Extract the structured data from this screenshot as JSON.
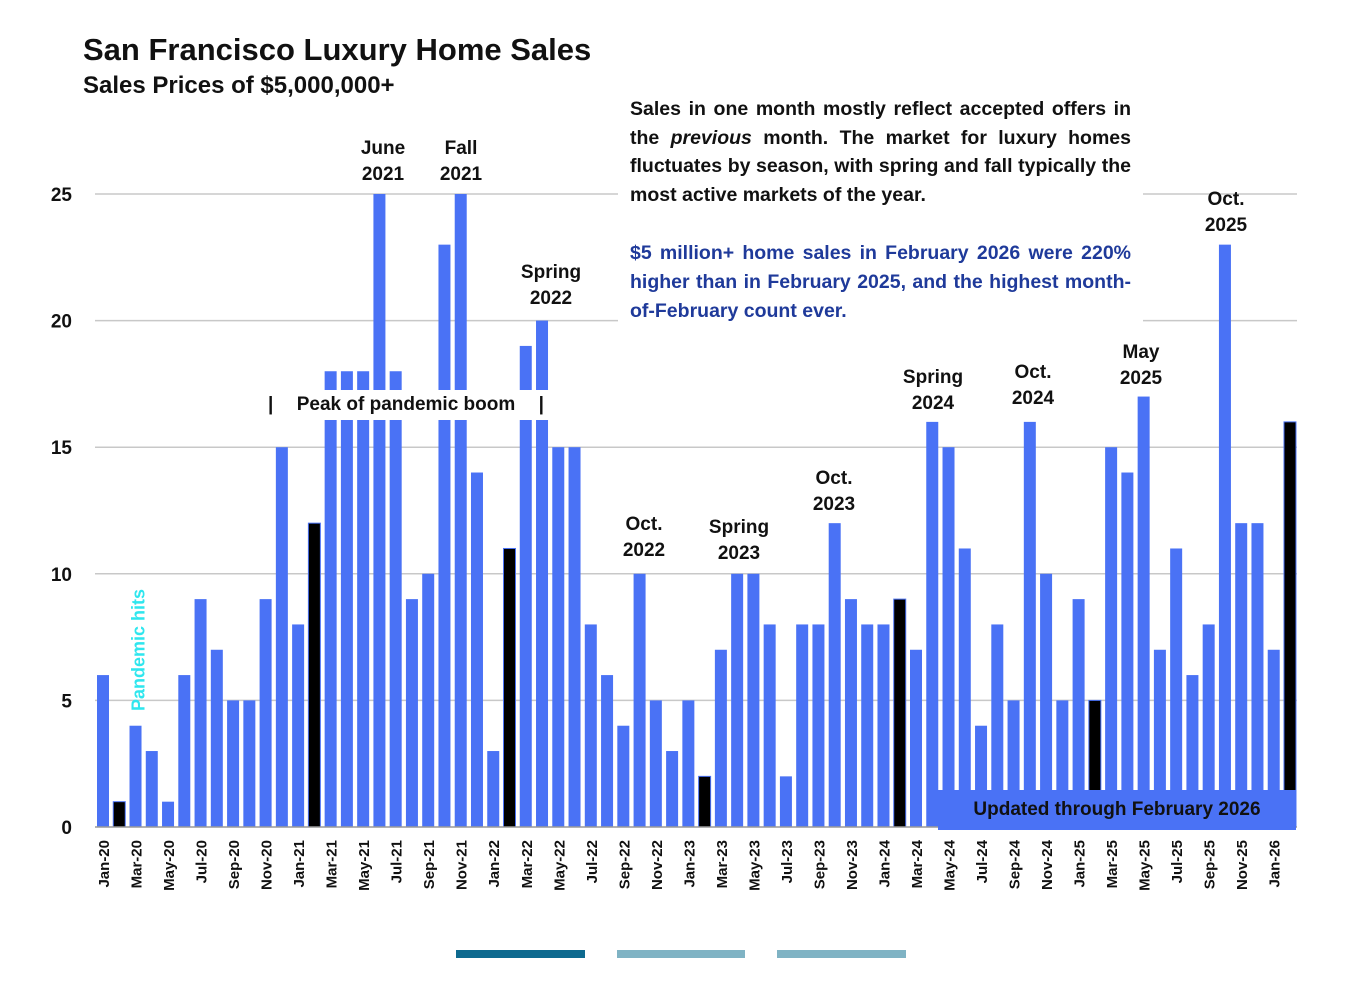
{
  "chart_data": {
    "type": "bar",
    "title": "San Francisco Luxury Home Sales",
    "subtitle": "Sales Prices of $5,000,000+",
    "xlabel": "",
    "ylabel": "",
    "ylim": [
      0,
      25
    ],
    "yticks": [
      "0",
      "5",
      "10",
      "15",
      "20",
      "25"
    ],
    "grid": true,
    "categories": [
      "Jan-20",
      "Feb-20",
      "Mar-20",
      "Apr-20",
      "May-20",
      "Jun-20",
      "Jul-20",
      "Aug-20",
      "Sep-20",
      "Oct-20",
      "Nov-20",
      "Dec-20",
      "Jan-21",
      "Feb-21",
      "Mar-21",
      "Apr-21",
      "May-21",
      "Jun-21",
      "Jul-21",
      "Aug-21",
      "Sep-21",
      "Oct-21",
      "Nov-21",
      "Dec-21",
      "Jan-22",
      "Feb-22",
      "Mar-22",
      "Apr-22",
      "May-22",
      "Jun-22",
      "Jul-22",
      "Aug-22",
      "Sep-22",
      "Oct-22",
      "Nov-22",
      "Dec-22",
      "Jan-23",
      "Feb-23",
      "Mar-23",
      "Apr-23",
      "May-23",
      "Jun-23",
      "Jul-23",
      "Aug-23",
      "Sep-23",
      "Oct-23",
      "Nov-23",
      "Dec-23",
      "Jan-24",
      "Feb-24",
      "Mar-24",
      "Apr-24",
      "May-24",
      "Jun-24",
      "Jul-24",
      "Aug-24",
      "Sep-24",
      "Oct-24",
      "Nov-24",
      "Dec-24",
      "Jan-25",
      "Feb-25",
      "Mar-25",
      "Apr-25",
      "May-25",
      "Jun-25",
      "Jul-25",
      "Aug-25",
      "Sep-25",
      "Oct-25",
      "Nov-25",
      "Dec-25",
      "Jan-26",
      "Feb-26"
    ],
    "values": [
      6,
      1,
      4,
      3,
      1,
      6,
      9,
      7,
      5,
      5,
      9,
      15,
      8,
      12,
      18,
      18,
      18,
      25,
      18,
      9,
      10,
      23,
      25,
      14,
      3,
      11,
      19,
      20,
      15,
      15,
      8,
      6,
      4,
      10,
      5,
      3,
      5,
      2,
      7,
      10,
      10,
      8,
      2,
      8,
      8,
      12,
      9,
      8,
      8,
      9,
      7,
      16,
      15,
      11,
      4,
      8,
      5,
      16,
      10,
      5,
      9,
      5,
      15,
      14,
      17,
      7,
      11,
      6,
      8,
      23,
      12,
      12,
      7,
      16
    ],
    "highlight_months": [
      "Feb-20",
      "Feb-21",
      "Feb-22",
      "Feb-23",
      "Feb-24",
      "Feb-25",
      "Feb-26"
    ],
    "colors": {
      "bar": "#4a72f5",
      "highlight": "#000000",
      "grid": "#c8c8c8",
      "annotation_blue": "#1f3a9a",
      "pandemic": "#2fe6ee"
    },
    "annotations": {
      "june2021": [
        "June",
        "2021"
      ],
      "fall2021": [
        "Fall",
        "2021"
      ],
      "spring2022": [
        "Spring",
        "2022"
      ],
      "oct2022": [
        "Oct.",
        "2022"
      ],
      "spring2023": [
        "Spring",
        "2023"
      ],
      "oct2023": [
        "Oct.",
        "2023"
      ],
      "spring2024": [
        "Spring",
        "2024"
      ],
      "oct2024": [
        "Oct.",
        "2024"
      ],
      "may2025": [
        "May",
        "2025"
      ],
      "oct2025": [
        "Oct.",
        "2025"
      ],
      "peak": "Peak of pandemic boom",
      "peak_bar": "|",
      "pandemic": "Pandemic hits",
      "updated": "Updated through February 2026"
    },
    "note_black": "Sales in one month mostly reflect accepted offers in the previous month. The market for luxury homes fluctuates by season, with spring and fall typically the most active markets of the year.",
    "note_black_parts": [
      "Sales in one month mostly reflect accepted offers in the ",
      "previous",
      " month. The market for luxury homes fluctuates by season, with spring and fall typically the most active markets of the year."
    ],
    "note_blue": "$5 million+ home sales in February 2026 were 220% higher than in February 2025, and the highest month-of-February count ever."
  }
}
